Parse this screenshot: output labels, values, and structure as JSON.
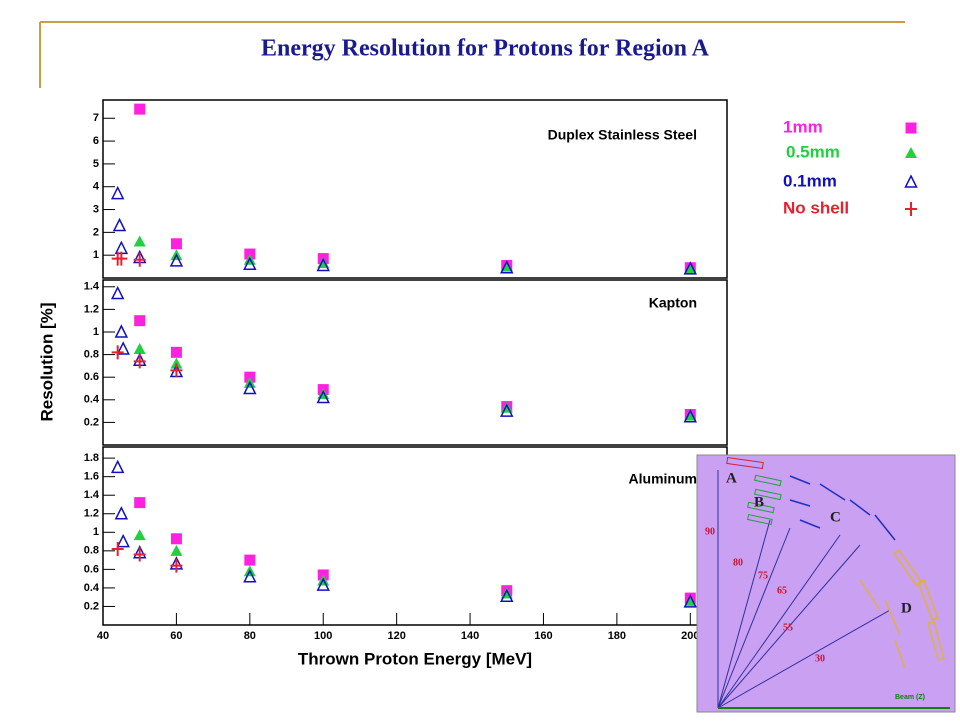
{
  "title": "Energy Resolution for Protons for Region A",
  "chart_data": [
    {
      "type": "scatter",
      "label": "Duplex Stainless Steel",
      "xlim": [
        40,
        210
      ],
      "ylim": [
        0,
        7.8
      ],
      "yticks": [
        1,
        2,
        3,
        4,
        5,
        6,
        7
      ],
      "series": [
        {
          "name": "1mm",
          "color": "#ff20e0",
          "marker": "square",
          "x": [
            50,
            60,
            80,
            100,
            150,
            200
          ],
          "values": [
            7.4,
            1.5,
            1.05,
            0.85,
            0.55,
            0.45
          ]
        },
        {
          "name": "0.5mm",
          "color": "#20d040",
          "marker": "triangle",
          "x": [
            50,
            60,
            80,
            100,
            150,
            200
          ],
          "values": [
            1.6,
            1.0,
            0.8,
            0.65,
            0.5,
            0.4
          ]
        },
        {
          "name": "0.1mm",
          "color": "#1010c0",
          "marker": "open-triangle",
          "x": [
            44,
            44.5,
            45,
            50,
            60,
            80,
            100,
            150,
            200
          ],
          "values": [
            3.7,
            2.3,
            1.3,
            0.9,
            0.75,
            0.6,
            0.55,
            0.45,
            0.4
          ]
        },
        {
          "name": "No shell",
          "color": "#e82030",
          "marker": "plus",
          "x": [
            44,
            45,
            50
          ],
          "values": [
            0.85,
            0.85,
            0.8
          ]
        }
      ]
    },
    {
      "type": "scatter",
      "label": "Kapton",
      "ylabel": "Resolution [%]",
      "xlim": [
        40,
        210
      ],
      "ylim": [
        0,
        1.46
      ],
      "yticks": [
        0.2,
        0.4,
        0.6,
        0.8,
        1,
        1.2,
        1.4
      ],
      "series": [
        {
          "color": "#ff20e0",
          "marker": "square",
          "x": [
            50,
            60,
            80,
            100,
            150,
            200
          ],
          "values": [
            1.1,
            0.82,
            0.6,
            0.49,
            0.34,
            0.27
          ]
        },
        {
          "color": "#20d040",
          "marker": "triangle",
          "x": [
            50,
            60,
            80,
            100,
            150,
            200
          ],
          "values": [
            0.85,
            0.72,
            0.55,
            0.45,
            0.33,
            0.26
          ]
        },
        {
          "color": "#1010c0",
          "marker": "open-triangle",
          "x": [
            44,
            45,
            45.5,
            50,
            60,
            80,
            100,
            150,
            200
          ],
          "values": [
            1.34,
            1.0,
            0.85,
            0.75,
            0.65,
            0.5,
            0.42,
            0.3,
            0.25
          ]
        },
        {
          "color": "#e82030",
          "marker": "plus",
          "x": [
            44,
            50,
            60
          ],
          "values": [
            0.82,
            0.74,
            0.66
          ]
        }
      ]
    },
    {
      "type": "scatter",
      "label": "Aluminum",
      "xlabel": "Thrown Proton Energy [MeV]",
      "xlim": [
        40,
        210
      ],
      "xticks": [
        40,
        60,
        80,
        100,
        120,
        140,
        160,
        180,
        200
      ],
      "ylim": [
        0,
        1.92
      ],
      "yticks": [
        0.2,
        0.4,
        0.6,
        0.8,
        1,
        1.2,
        1.4,
        1.6,
        1.8
      ],
      "series": [
        {
          "color": "#ff20e0",
          "marker": "square",
          "x": [
            50,
            60,
            80,
            100,
            150,
            200
          ],
          "values": [
            1.32,
            0.93,
            0.7,
            0.54,
            0.37,
            0.29
          ]
        },
        {
          "color": "#20d040",
          "marker": "triangle",
          "x": [
            50,
            60,
            80,
            100,
            150,
            200
          ],
          "values": [
            0.97,
            0.8,
            0.58,
            0.48,
            0.34,
            0.26
          ]
        },
        {
          "color": "#1010c0",
          "marker": "open-triangle",
          "x": [
            44,
            45,
            45.5,
            50,
            60,
            80,
            100,
            150,
            200
          ],
          "values": [
            1.7,
            1.2,
            0.9,
            0.78,
            0.66,
            0.52,
            0.43,
            0.31,
            0.25
          ]
        },
        {
          "color": "#e82030",
          "marker": "plus",
          "x": [
            44,
            50,
            60
          ],
          "values": [
            0.82,
            0.76,
            0.64
          ]
        }
      ]
    }
  ],
  "diagram": {
    "regions": [
      "A",
      "B",
      "C",
      "D"
    ],
    "angles": [
      "90",
      "80",
      "75",
      "65",
      "55",
      "30"
    ],
    "axis": "Beam (Z)"
  }
}
